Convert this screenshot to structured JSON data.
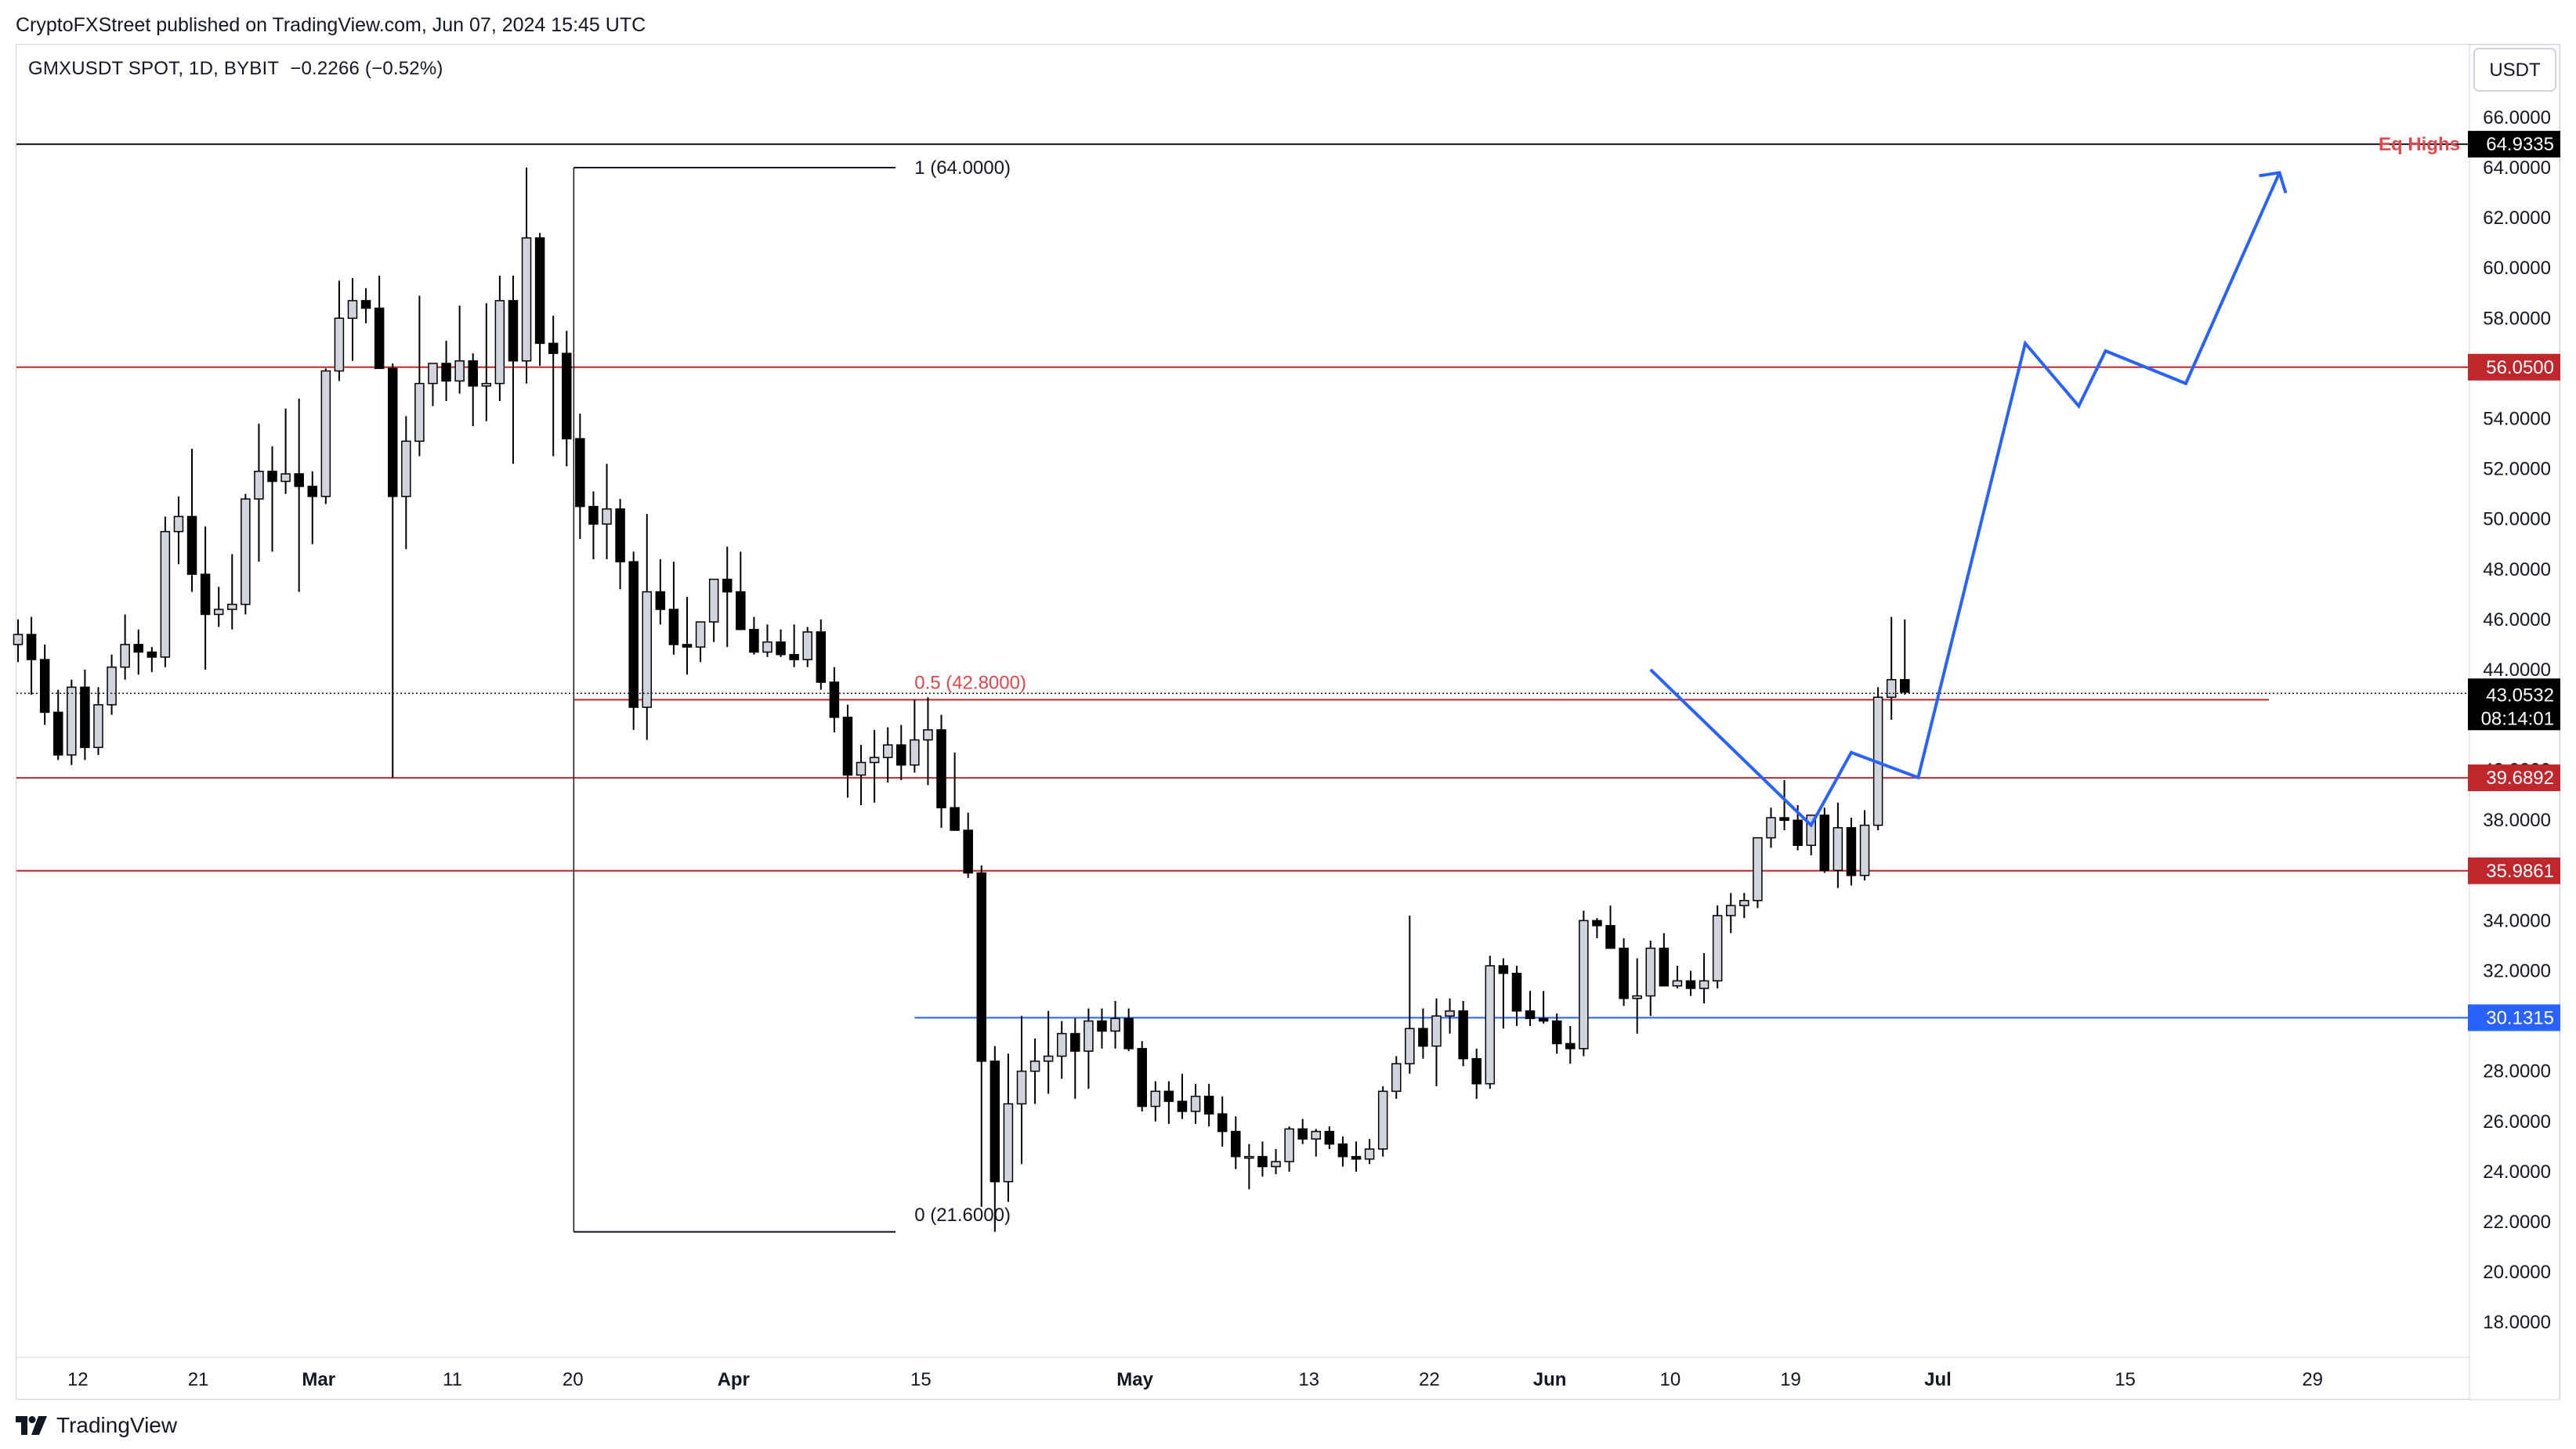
{
  "header": {
    "published": "CryptoFXStreet published on TradingView.com, Jun 07, 2024 15:45 UTC"
  },
  "symbol": {
    "name": "GMXUSDT SPOT, 1D, BYBIT",
    "change": "−0.2266 (−0.52%)"
  },
  "footer": {
    "brand": "TradingView"
  },
  "colors": {
    "up_fill": "#d1d4dc",
    "down_fill": "#000000",
    "candle_outline": "#000000",
    "level_red": "#c0272d",
    "level_blue": "#2962ff",
    "projection": "#2962ff",
    "fib_label": "#e0484d",
    "eq_highs": "#e0484d"
  },
  "chart_data": {
    "type": "candlestick",
    "currency": "USDT",
    "x_ticks": [
      "12",
      "21",
      "Mar",
      "11",
      "20",
      "Apr",
      "15",
      "May",
      "13",
      "22",
      "Jun",
      "10",
      "19",
      "Jul",
      "15",
      "29"
    ],
    "y_ticks": [
      "18.0000",
      "20.0000",
      "22.0000",
      "24.0000",
      "26.0000",
      "28.0000",
      "30.0000",
      "32.0000",
      "34.0000",
      "36.0000",
      "38.0000",
      "40.0000",
      "42.0000",
      "44.0000",
      "46.0000",
      "48.0000",
      "50.0000",
      "52.0000",
      "54.0000",
      "56.0000",
      "58.0000",
      "60.0000",
      "62.0000",
      "64.0000",
      "66.0000"
    ],
    "ylim": [
      16.6,
      68.9
    ],
    "candles_ohlc": [
      [
        45.0,
        46.0,
        44.3,
        45.4
      ],
      [
        45.4,
        46.1,
        43.0,
        44.4
      ],
      [
        44.4,
        45.0,
        41.8,
        42.3
      ],
      [
        42.3,
        43.2,
        40.4,
        40.6
      ],
      [
        40.6,
        43.6,
        40.2,
        43.3
      ],
      [
        43.3,
        44.0,
        40.4,
        40.9
      ],
      [
        40.9,
        43.3,
        40.6,
        42.6
      ],
      [
        42.6,
        44.6,
        42.2,
        44.1
      ],
      [
        44.1,
        46.2,
        43.6,
        45.0
      ],
      [
        45.0,
        45.6,
        43.8,
        44.7
      ],
      [
        44.7,
        44.9,
        43.9,
        44.5
      ],
      [
        44.5,
        50.1,
        44.1,
        49.5
      ],
      [
        49.5,
        50.9,
        48.2,
        50.1
      ],
      [
        50.1,
        52.8,
        47.1,
        47.8
      ],
      [
        47.8,
        49.7,
        44.0,
        46.2
      ],
      [
        46.2,
        47.3,
        45.7,
        46.4
      ],
      [
        46.4,
        48.6,
        45.6,
        46.6
      ],
      [
        46.6,
        51.0,
        46.2,
        50.8
      ],
      [
        50.8,
        53.8,
        48.3,
        51.9
      ],
      [
        51.9,
        52.9,
        48.7,
        51.5
      ],
      [
        51.5,
        54.4,
        51.0,
        51.8
      ],
      [
        51.8,
        54.8,
        47.1,
        51.3
      ],
      [
        51.3,
        51.9,
        49.0,
        50.9
      ],
      [
        50.9,
        56.0,
        50.6,
        55.9
      ],
      [
        55.9,
        59.5,
        55.5,
        58.0
      ],
      [
        58.0,
        59.6,
        56.3,
        58.7
      ],
      [
        58.7,
        59.2,
        57.8,
        58.4
      ],
      [
        58.4,
        59.7,
        56.3,
        56.0
      ],
      [
        56.0,
        56.2,
        39.7,
        50.9
      ],
      [
        50.9,
        54.1,
        48.8,
        53.1
      ],
      [
        53.1,
        58.9,
        52.5,
        55.4
      ],
      [
        55.4,
        56.1,
        54.5,
        56.2
      ],
      [
        56.2,
        57.1,
        54.7,
        55.5
      ],
      [
        55.5,
        58.5,
        55.0,
        56.3
      ],
      [
        56.3,
        56.6,
        53.7,
        55.3
      ],
      [
        55.3,
        58.6,
        53.9,
        55.4
      ],
      [
        55.4,
        59.7,
        54.7,
        58.7
      ],
      [
        58.7,
        59.7,
        52.2,
        56.3
      ],
      [
        56.3,
        64.0,
        55.4,
        61.2
      ],
      [
        61.2,
        61.4,
        56.1,
        57.0
      ],
      [
        57.0,
        58.1,
        52.5,
        56.6
      ],
      [
        56.6,
        57.5,
        52.1,
        53.2
      ],
      [
        53.2,
        54.2,
        49.2,
        50.5
      ],
      [
        50.5,
        51.1,
        48.4,
        49.8
      ],
      [
        49.8,
        52.2,
        48.4,
        50.4
      ],
      [
        50.4,
        50.8,
        47.2,
        48.3
      ],
      [
        48.3,
        48.7,
        41.6,
        42.5
      ],
      [
        42.5,
        50.2,
        41.2,
        47.1
      ],
      [
        47.1,
        48.4,
        45.8,
        46.4
      ],
      [
        46.4,
        48.3,
        44.6,
        45.0
      ],
      [
        45.0,
        46.9,
        43.8,
        44.9
      ],
      [
        44.9,
        45.7,
        44.3,
        45.9
      ],
      [
        45.9,
        47.0,
        45.1,
        47.6
      ],
      [
        47.6,
        48.9,
        44.9,
        47.1
      ],
      [
        47.1,
        48.7,
        46.1,
        45.6
      ],
      [
        45.6,
        46.1,
        44.6,
        44.7
      ],
      [
        44.7,
        45.8,
        44.5,
        45.1
      ],
      [
        45.1,
        45.6,
        44.5,
        44.6
      ],
      [
        44.6,
        45.8,
        44.1,
        44.4
      ],
      [
        44.4,
        45.7,
        44.1,
        45.5
      ],
      [
        45.5,
        46.0,
        43.2,
        43.5
      ],
      [
        43.5,
        44.1,
        41.5,
        42.1
      ],
      [
        42.1,
        42.6,
        38.9,
        39.8
      ],
      [
        39.8,
        41.0,
        38.6,
        40.3
      ],
      [
        40.3,
        41.6,
        38.7,
        40.5
      ],
      [
        40.5,
        41.7,
        39.5,
        41.0
      ],
      [
        41.0,
        41.8,
        39.6,
        40.2
      ],
      [
        40.2,
        42.8,
        39.9,
        41.2
      ],
      [
        41.2,
        42.9,
        39.4,
        41.6
      ],
      [
        41.6,
        42.2,
        37.7,
        38.5
      ],
      [
        38.5,
        40.7,
        38.2,
        37.6
      ],
      [
        37.6,
        38.3,
        35.7,
        35.9
      ],
      [
        35.9,
        36.2,
        22.6,
        28.4
      ],
      [
        28.4,
        29.0,
        21.6,
        23.6
      ],
      [
        23.6,
        28.7,
        22.8,
        26.7
      ],
      [
        26.7,
        30.2,
        24.3,
        28.0
      ],
      [
        28.0,
        29.3,
        26.7,
        28.4
      ],
      [
        28.4,
        30.4,
        27.1,
        28.6
      ],
      [
        28.6,
        30.0,
        27.7,
        29.5
      ],
      [
        29.5,
        30.1,
        26.9,
        28.8
      ],
      [
        28.8,
        30.5,
        27.3,
        30.0
      ],
      [
        30.0,
        30.5,
        28.9,
        29.6
      ],
      [
        29.6,
        30.8,
        28.9,
        30.1
      ],
      [
        30.1,
        30.5,
        28.8,
        28.9
      ],
      [
        28.9,
        29.2,
        26.4,
        26.6
      ],
      [
        26.6,
        27.6,
        26.0,
        27.2
      ],
      [
        27.2,
        27.6,
        25.9,
        26.8
      ],
      [
        26.8,
        27.9,
        26.1,
        26.4
      ],
      [
        26.4,
        27.5,
        25.9,
        27.0
      ],
      [
        27.0,
        27.5,
        25.8,
        26.3
      ],
      [
        26.3,
        27.0,
        25.0,
        25.6
      ],
      [
        25.6,
        26.2,
        24.1,
        24.6
      ],
      [
        24.6,
        25.1,
        23.3,
        24.6
      ],
      [
        24.6,
        25.2,
        23.8,
        24.2
      ],
      [
        24.2,
        24.9,
        23.9,
        24.4
      ],
      [
        24.4,
        25.8,
        24.0,
        25.7
      ],
      [
        25.7,
        26.1,
        25.1,
        25.3
      ],
      [
        25.3,
        25.7,
        24.6,
        25.6
      ],
      [
        25.6,
        25.8,
        24.9,
        25.1
      ],
      [
        25.1,
        25.4,
        24.2,
        24.6
      ],
      [
        24.6,
        25.2,
        24.0,
        24.5
      ],
      [
        24.5,
        25.3,
        24.3,
        24.9
      ],
      [
        24.9,
        27.4,
        24.6,
        27.2
      ],
      [
        27.2,
        28.6,
        26.9,
        28.3
      ],
      [
        28.3,
        34.2,
        27.9,
        29.7
      ],
      [
        29.7,
        30.5,
        28.5,
        29.0
      ],
      [
        29.0,
        30.9,
        27.4,
        30.2
      ],
      [
        30.2,
        30.9,
        29.5,
        30.4
      ],
      [
        30.4,
        30.8,
        28.2,
        28.5
      ],
      [
        28.5,
        28.9,
        26.9,
        27.5
      ],
      [
        27.5,
        32.6,
        27.3,
        32.2
      ],
      [
        32.2,
        32.5,
        29.7,
        31.9
      ],
      [
        31.9,
        32.2,
        29.8,
        30.4
      ],
      [
        30.4,
        31.2,
        29.8,
        30.1
      ],
      [
        30.1,
        31.2,
        29.9,
        30.0
      ],
      [
        30.0,
        30.3,
        28.7,
        29.1
      ],
      [
        29.1,
        29.8,
        28.3,
        28.9
      ],
      [
        28.9,
        34.4,
        28.6,
        34.0
      ],
      [
        34.0,
        34.1,
        33.3,
        33.8
      ],
      [
        33.8,
        34.6,
        33.2,
        32.9
      ],
      [
        32.9,
        33.3,
        30.6,
        30.9
      ],
      [
        30.9,
        32.5,
        29.5,
        31.0
      ],
      [
        31.0,
        33.2,
        30.2,
        32.9
      ],
      [
        32.9,
        33.5,
        31.8,
        31.4
      ],
      [
        31.4,
        32.2,
        31.3,
        31.6
      ],
      [
        31.6,
        32.0,
        31.0,
        31.3
      ],
      [
        31.3,
        32.7,
        30.7,
        31.6
      ],
      [
        31.6,
        34.6,
        31.3,
        34.2
      ],
      [
        34.2,
        35.1,
        33.5,
        34.6
      ],
      [
        34.6,
        35.1,
        34.1,
        34.8
      ],
      [
        34.8,
        35.5,
        34.5,
        37.3
      ],
      [
        37.3,
        38.5,
        36.9,
        38.1
      ],
      [
        38.1,
        39.6,
        37.6,
        38.0
      ],
      [
        38.0,
        38.6,
        36.8,
        37.0
      ],
      [
        37.0,
        38.2,
        36.6,
        38.2
      ],
      [
        38.2,
        38.5,
        35.9,
        36.0
      ],
      [
        36.0,
        38.7,
        35.3,
        37.7
      ],
      [
        37.7,
        38.1,
        35.4,
        35.8
      ],
      [
        35.8,
        38.4,
        35.6,
        37.8
      ],
      [
        37.8,
        43.3,
        37.6,
        42.9
      ],
      [
        42.9,
        46.1,
        42.0,
        43.6
      ],
      [
        43.6,
        46.0,
        43.0,
        43.1
      ]
    ],
    "levels": [
      {
        "price": 64.9335,
        "label": "64.9335",
        "color": "black",
        "annotation": "Eq Highs"
      },
      {
        "price": 56.05,
        "label": "56.0500",
        "color": "red"
      },
      {
        "price": 39.6892,
        "label": "39.6892",
        "color": "red"
      },
      {
        "price": 35.9861,
        "label": "35.9861",
        "color": "red"
      },
      {
        "price": 30.1315,
        "label": "30.1315",
        "color": "blue"
      }
    ],
    "fibonacci": [
      {
        "price": 64.0,
        "label": "1 (64.0000)"
      },
      {
        "price": 42.8,
        "label": "0.5 (42.8000)"
      },
      {
        "price": 21.6,
        "label": "0 (21.6000)"
      }
    ],
    "last_price": {
      "price": 43.0532,
      "label": "43.0532",
      "countdown": "08:14:01"
    },
    "hidden_tick_behind_label": "40.0000",
    "projection_path": [
      [
        "Jun 10",
        44.0
      ],
      [
        "Jun 22",
        37.8
      ],
      [
        "Jun 25",
        40.7
      ],
      [
        "Jun 30",
        39.7
      ],
      [
        "Jul 8",
        57.0
      ],
      [
        "Jul 12",
        54.5
      ],
      [
        "Jul 14",
        56.7
      ],
      [
        "Jul 20",
        55.4
      ],
      [
        "Jul 27",
        63.8
      ]
    ]
  }
}
